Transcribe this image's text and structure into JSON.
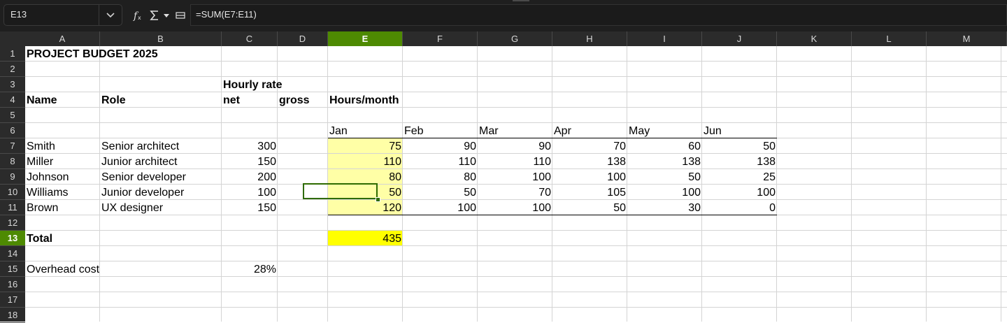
{
  "name_box": "E13",
  "formula": "=SUM(E7:E11)",
  "toolbar_icons": [
    "function-wizard-icon",
    "sum-icon",
    "dropdown-arrow-icon",
    "expand-formula-icon"
  ],
  "columns": [
    "A",
    "B",
    "C",
    "D",
    "E",
    "F",
    "G",
    "H",
    "I",
    "J",
    "K",
    "L",
    "M"
  ],
  "rows": [
    "1",
    "2",
    "3",
    "4",
    "5",
    "6",
    "7",
    "8",
    "9",
    "10",
    "11",
    "12",
    "13",
    "14",
    "15",
    "16",
    "17",
    "18"
  ],
  "selected_column": "E",
  "selected_row": "13",
  "colors": {
    "selection_header": "#4e8a02",
    "input_highlight": "#ffffa6",
    "total_highlight": "#ffff00"
  },
  "cells": {
    "A1": "PROJECT BUDGET 2025",
    "C3": "Hourly rate",
    "A4": "Name",
    "B4": "Role",
    "C4": "net",
    "D4": "gross",
    "E4": "Hours/month",
    "E6": "Jan",
    "F6": "Feb",
    "G6": "Mar",
    "H6": "Apr",
    "I6": "May",
    "J6": "Jun",
    "A7": "Smith",
    "B7": "Senior architect",
    "C7": "300",
    "E7": "75",
    "F7": "90",
    "G7": "90",
    "H7": "70",
    "I7": "60",
    "J7": "50",
    "A8": "Miller",
    "B8": "Junior architect",
    "C8": "150",
    "E8": "110",
    "F8": "110",
    "G8": "110",
    "H8": "138",
    "I8": "138",
    "J8": "138",
    "A9": "Johnson",
    "B9": "Senior developer",
    "C9": "200",
    "E9": "80",
    "F9": "80",
    "G9": "100",
    "H9": "100",
    "I9": "50",
    "J9": "25",
    "A10": "Williams",
    "B10": "Junior developer",
    "C10": "100",
    "E10": "50",
    "F10": "50",
    "G10": "70",
    "H10": "105",
    "I10": "100",
    "J10": "100",
    "A11": "Brown",
    "B11": "UX designer",
    "C11": "150",
    "E11": "120",
    "F11": "100",
    "G11": "100",
    "H11": "50",
    "I11": "30",
    "J11": "0",
    "A13": "Total",
    "E13": "435",
    "A15": "Overhead cost",
    "C15": "28%"
  }
}
